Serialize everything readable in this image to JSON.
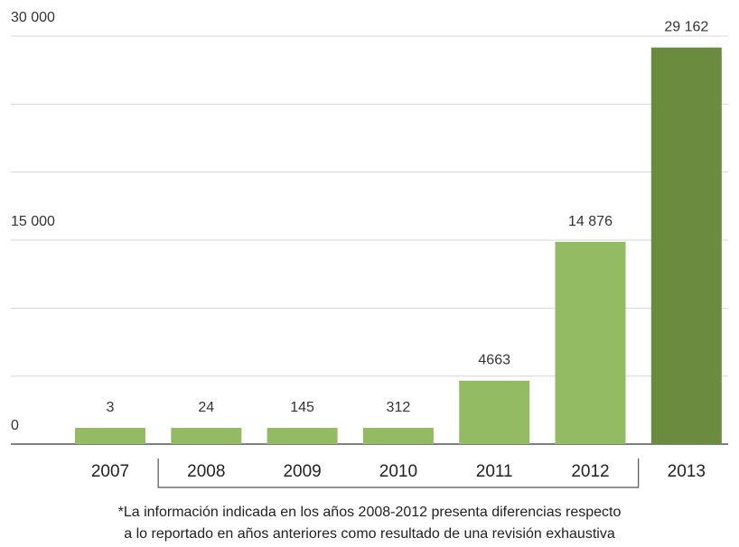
{
  "chart_data": {
    "type": "bar",
    "categories": [
      "2007",
      "2008",
      "2009",
      "2010",
      "2011",
      "2012",
      "2013"
    ],
    "values": [
      3,
      24,
      145,
      312,
      4663,
      14876,
      29162
    ],
    "data_labels": [
      "3",
      "24",
      "145",
      "312",
      "4663",
      "14 876",
      "29 162"
    ],
    "ylim": [
      0,
      30000
    ],
    "y_ticks": [
      0,
      15000,
      30000
    ],
    "y_tick_labels": [
      "0",
      "15 000",
      "30 000"
    ],
    "gridlines": [
      0,
      5000,
      10000,
      15000,
      20000,
      25000,
      30000
    ],
    "grid": true,
    "bracket_categories": [
      "2008",
      "2012"
    ],
    "colors": {
      "bar": "#92bb64",
      "highlight_bar": "#6b8c3e",
      "grid": "#d6d6d6",
      "baseline": "#555555",
      "bracket": "#555555"
    },
    "highlight_index": 6
  },
  "footnote": {
    "line1": "*La información indicada en los años 2008-2012 presenta diferencias respecto",
    "line2": "a lo reportado en años anteriores como resultado de una revisión exhaustiva"
  }
}
